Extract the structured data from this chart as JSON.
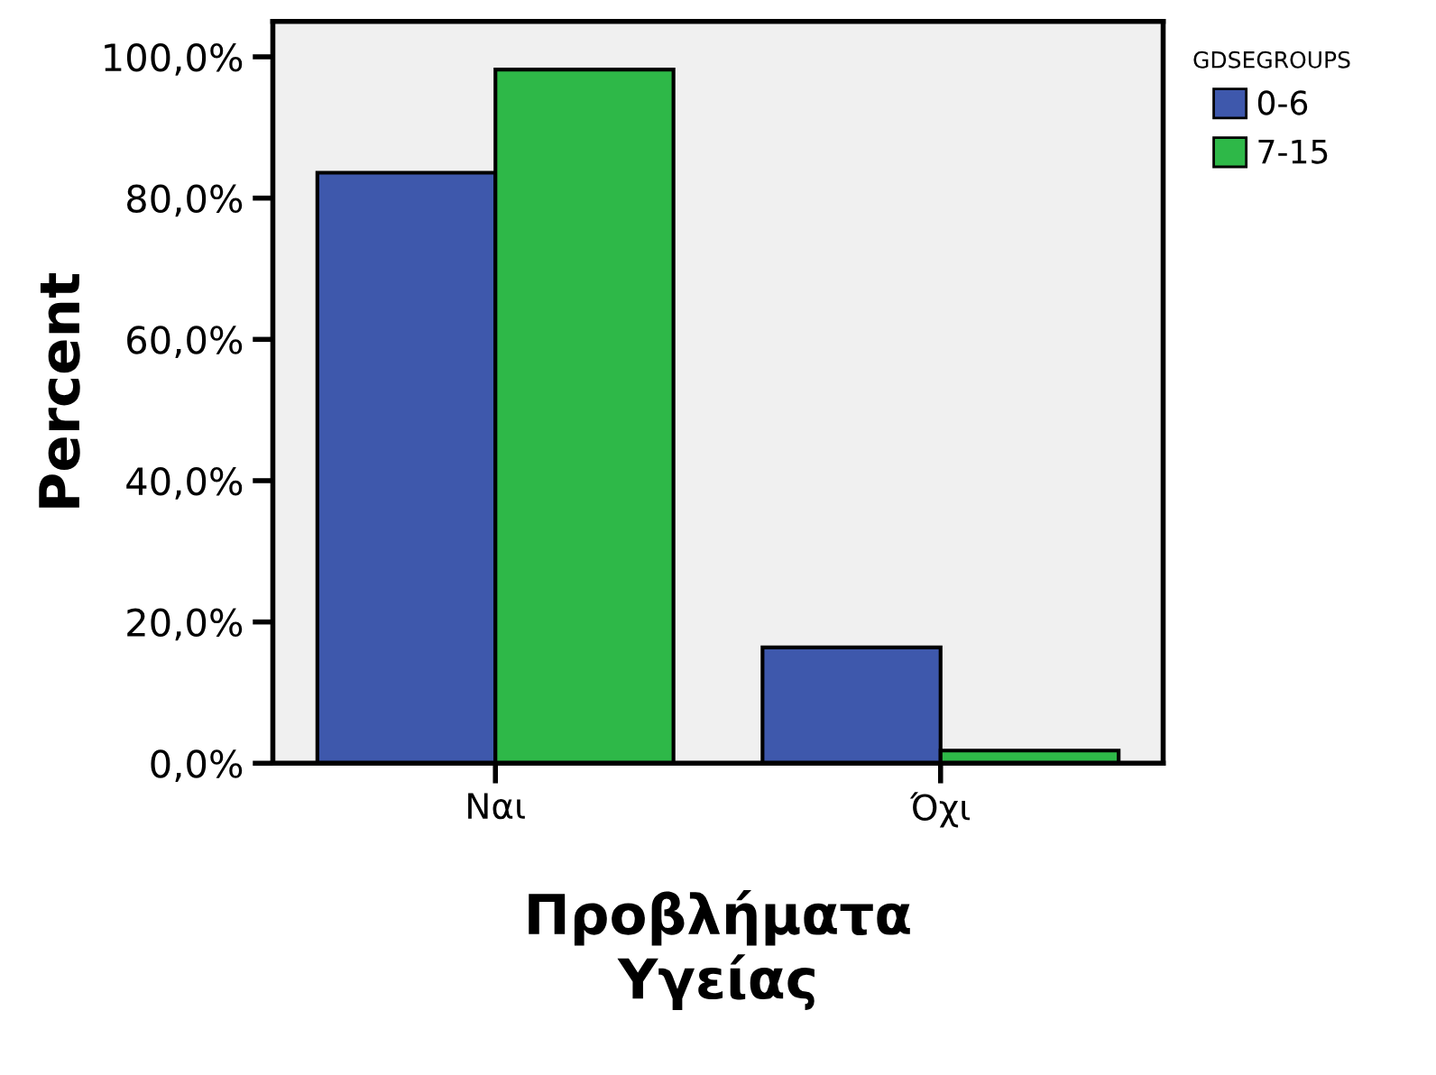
{
  "chart_data": {
    "type": "bar",
    "xlabel": "Προβλήματα\nΥγείας",
    "ylabel": "Percent",
    "legend_title": "GDSEGROUPS",
    "categories": [
      "Ναι",
      "Όχι"
    ],
    "series": [
      {
        "name": "0-6",
        "color": "#3e58ac",
        "values": [
          83.6,
          16.4
        ]
      },
      {
        "name": "7-15",
        "color": "#2eb848",
        "values": [
          98.2,
          1.8
        ]
      }
    ],
    "ylim": [
      0,
      105
    ],
    "yticks": [
      {
        "value": 0,
        "label": "0,0%"
      },
      {
        "value": 20,
        "label": "20,0%"
      },
      {
        "value": 40,
        "label": "40,0%"
      },
      {
        "value": 60,
        "label": "60,0%"
      },
      {
        "value": 80,
        "label": "80,0%"
      },
      {
        "value": 100,
        "label": "100,0%"
      }
    ],
    "grid": false,
    "legend": "top right"
  }
}
